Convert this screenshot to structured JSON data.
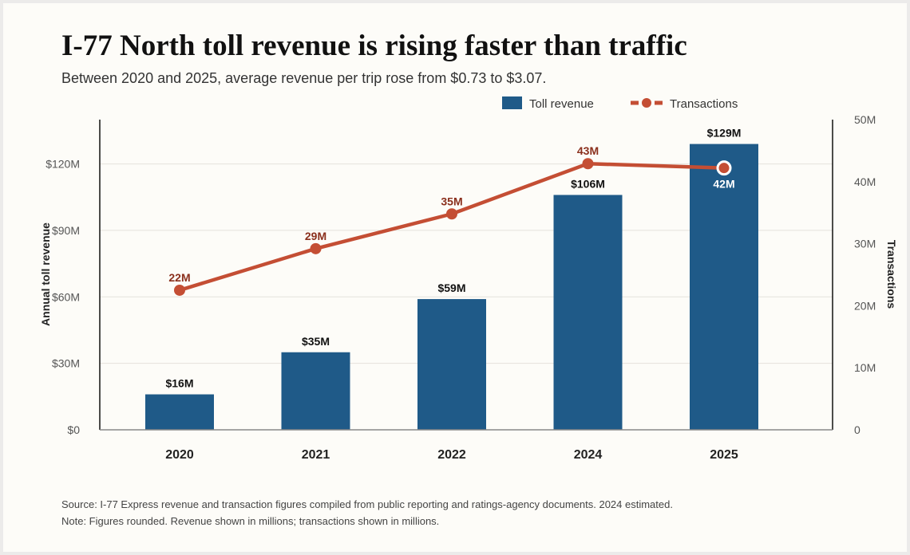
{
  "title": "I-77 North toll revenue is rising faster than traffic",
  "subtitle": "Between 2020 and 2025, average revenue per trip rose from $0.73 to $3.07.",
  "source": "Source: I-77 Express revenue and transaction figures compiled from public reporting and ratings-agency documents. 2024 estimated.",
  "note": "Note: Figures rounded. Revenue shown in millions; transactions shown in millions.",
  "chart_data": {
    "type": "bar+line",
    "categories": [
      "2020",
      "2021",
      "2022",
      "2024",
      "2025"
    ],
    "series": [
      {
        "name": "Toll revenue",
        "type": "bar",
        "axis": "left",
        "values": [
          16,
          35,
          59,
          106,
          129
        ],
        "labels": [
          "$16M",
          "$35M",
          "$59M",
          "$106M",
          "$129M"
        ],
        "color": "#1f5a88"
      },
      {
        "name": "Transactions",
        "type": "line",
        "axis": "right",
        "values": [
          22.5,
          29.2,
          34.8,
          42.9,
          42.2
        ],
        "labels": [
          "22M",
          "29M",
          "35M",
          "43M",
          "42M"
        ],
        "color": "#c44e34"
      }
    ],
    "ylabel_left": "Annual toll revenue",
    "ylabel_right": "Transactions",
    "ylim_left": [
      0,
      140
    ],
    "ylim_right": [
      0,
      50
    ],
    "yticks_left": [
      {
        "v": 0,
        "label": "$0"
      },
      {
        "v": 30,
        "label": "$30M"
      },
      {
        "v": 60,
        "label": "$60M"
      },
      {
        "v": 90,
        "label": "$90M"
      },
      {
        "v": 120,
        "label": "$120M"
      }
    ],
    "yticks_right": [
      {
        "v": 0,
        "label": "0"
      },
      {
        "v": 10,
        "label": "10M"
      },
      {
        "v": 20,
        "label": "20M"
      },
      {
        "v": 30,
        "label": "30M"
      },
      {
        "v": 40,
        "label": "40M"
      },
      {
        "v": 50,
        "label": "50M"
      }
    ],
    "grid": true,
    "legend": "top-right"
  }
}
